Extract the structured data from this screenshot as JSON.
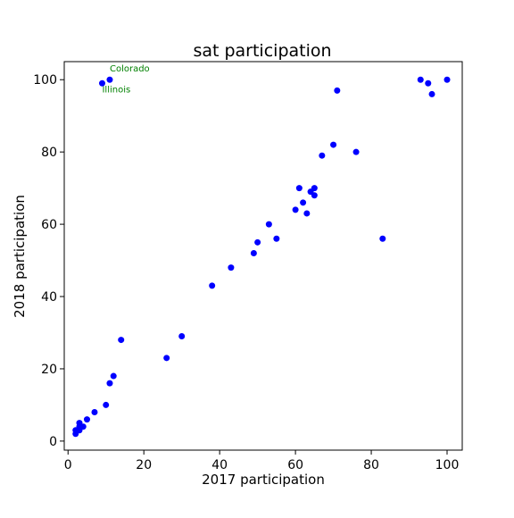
{
  "chart_data": {
    "type": "scatter",
    "title": "sat participation",
    "xlabel": "2017 participation",
    "ylabel": "2018 participation",
    "xlim": [
      -1,
      104
    ],
    "ylim": [
      -2.5,
      105
    ],
    "xticks": [
      0,
      20,
      40,
      60,
      80,
      100
    ],
    "yticks": [
      0,
      20,
      40,
      60,
      80,
      100
    ],
    "grid": false,
    "marker_color": "#0000ff",
    "annotation_color": "#008000",
    "annotations": [
      {
        "text": "Colorado",
        "x": 11,
        "y": 100
      },
      {
        "text": "Illinois",
        "x": 9,
        "y": 99
      }
    ],
    "points": [
      {
        "x": 2,
        "y": 2
      },
      {
        "x": 2,
        "y": 3
      },
      {
        "x": 3,
        "y": 3
      },
      {
        "x": 3,
        "y": 4
      },
      {
        "x": 3,
        "y": 5
      },
      {
        "x": 4,
        "y": 4
      },
      {
        "x": 5,
        "y": 6
      },
      {
        "x": 7,
        "y": 8
      },
      {
        "x": 10,
        "y": 10
      },
      {
        "x": 11,
        "y": 16
      },
      {
        "x": 12,
        "y": 18
      },
      {
        "x": 14,
        "y": 28
      },
      {
        "x": 26,
        "y": 23
      },
      {
        "x": 30,
        "y": 29
      },
      {
        "x": 38,
        "y": 43
      },
      {
        "x": 43,
        "y": 48
      },
      {
        "x": 49,
        "y": 52
      },
      {
        "x": 50,
        "y": 55
      },
      {
        "x": 53,
        "y": 60
      },
      {
        "x": 55,
        "y": 56
      },
      {
        "x": 60,
        "y": 64
      },
      {
        "x": 61,
        "y": 70
      },
      {
        "x": 62,
        "y": 66
      },
      {
        "x": 63,
        "y": 63
      },
      {
        "x": 64,
        "y": 69
      },
      {
        "x": 65,
        "y": 68
      },
      {
        "x": 65,
        "y": 70
      },
      {
        "x": 67,
        "y": 79
      },
      {
        "x": 70,
        "y": 82
      },
      {
        "x": 71,
        "y": 97
      },
      {
        "x": 76,
        "y": 80
      },
      {
        "x": 83,
        "y": 56
      },
      {
        "x": 93,
        "y": 100
      },
      {
        "x": 95,
        "y": 99
      },
      {
        "x": 96,
        "y": 96
      },
      {
        "x": 100,
        "y": 100
      },
      {
        "x": 11,
        "y": 100
      },
      {
        "x": 9,
        "y": 99
      }
    ]
  }
}
